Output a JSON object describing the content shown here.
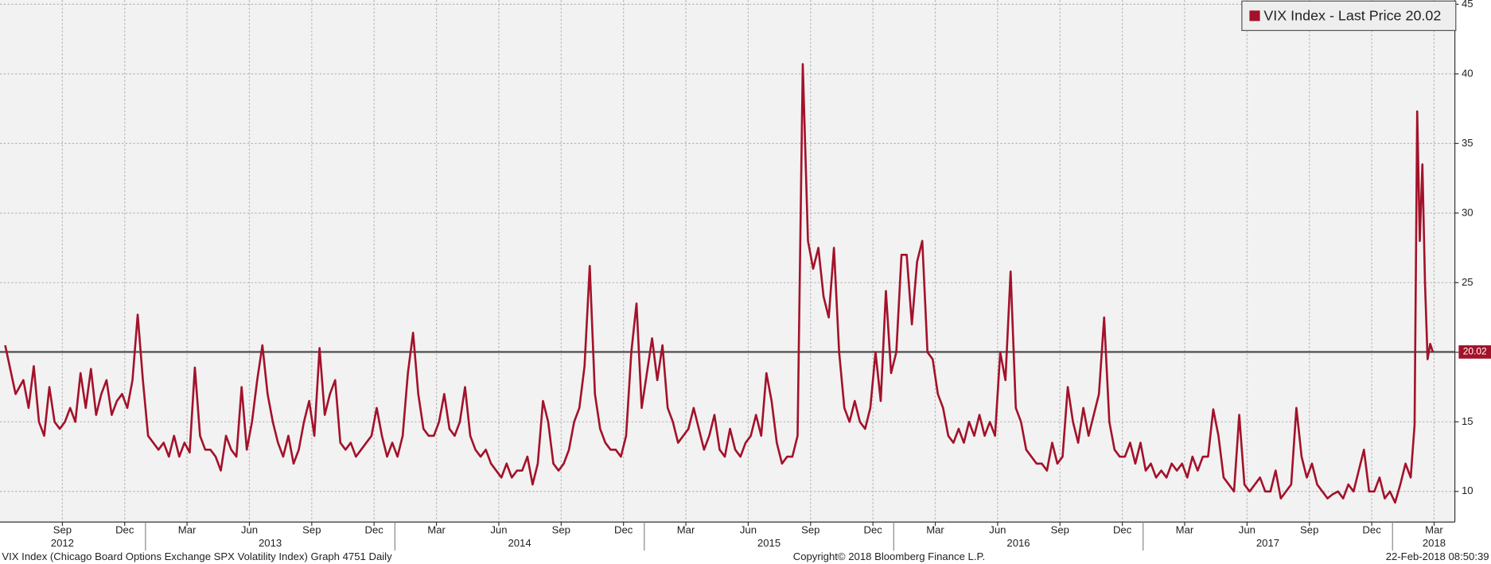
{
  "chart_data": {
    "type": "line",
    "series": [
      {
        "name": "VIX Index - Last Price",
        "color": "#a3122a",
        "values": [
          20.5,
          17,
          18,
          16,
          19,
          15,
          14,
          17.5,
          15,
          14.5,
          15,
          16,
          15,
          18.5,
          16,
          18.8,
          15.5,
          17,
          18,
          15.5,
          16.5,
          17,
          16,
          18,
          22.7,
          18,
          14,
          13.5,
          13,
          13.5,
          12.5,
          14,
          12.5,
          13.5,
          12.8,
          18.9,
          14,
          13,
          13,
          12.5,
          11.5,
          14,
          13,
          12.5,
          17.5,
          13,
          15,
          18,
          20.5,
          17,
          15,
          13.5,
          12.5,
          14,
          12,
          13,
          15,
          16.5,
          14,
          20.3,
          15.5,
          17,
          18,
          13.5,
          13,
          13.5,
          12.5,
          13,
          13.5,
          14,
          16,
          14,
          12.5,
          13.5,
          12.5,
          14,
          18.5,
          21.4,
          17,
          14.5,
          14,
          14,
          15,
          17,
          14.5,
          14,
          15,
          17.5,
          14,
          13,
          12.5,
          13,
          12,
          11.5,
          11,
          12,
          11,
          11.5,
          11.5,
          12.5,
          10.5,
          12,
          16.5,
          15,
          12,
          11.5,
          12,
          13,
          15,
          16,
          19,
          26.2,
          17,
          14.5,
          13.5,
          13,
          13,
          12.5,
          14,
          20,
          23.5,
          16,
          18.5,
          21,
          18,
          20.5,
          16,
          15,
          13.5,
          14,
          14.5,
          16,
          14.5,
          13,
          14,
          15.5,
          13,
          12.5,
          14.5,
          13,
          12.5,
          13.5,
          14,
          15.5,
          14,
          18.5,
          16.5,
          13.5,
          12,
          12.5,
          12.5,
          14,
          40.7,
          28,
          26,
          27.5,
          24,
          22.5,
          27.5,
          20,
          16,
          15,
          16.5,
          15,
          14.5,
          16,
          20,
          16.5,
          24.4,
          18.5,
          20,
          27,
          27,
          22,
          26.5,
          28,
          20,
          19.5,
          17,
          16,
          14,
          13.5,
          14.5,
          13.5,
          15,
          14,
          15.5,
          14,
          15,
          14,
          20,
          18,
          25.8,
          16,
          15,
          13,
          12.5,
          12,
          12,
          11.5,
          13.5,
          12,
          12.5,
          17.5,
          15,
          13.5,
          16,
          14,
          15.5,
          17,
          22.5,
          15,
          13,
          12.5,
          12.5,
          13.5,
          12,
          13.5,
          11.5,
          12,
          11,
          11.5,
          11,
          12,
          11.5,
          12,
          11,
          12.5,
          11.5,
          12.5,
          12.5,
          15.9,
          14,
          11,
          10.5,
          10,
          15.5,
          10.5,
          10,
          10.5,
          11,
          10,
          10,
          11.5,
          9.5,
          10,
          10.5,
          16,
          12.5,
          11,
          12,
          10.5,
          10,
          9.5,
          9.8,
          10,
          9.5,
          10.5,
          10,
          11.5,
          13,
          10,
          10,
          11,
          9.5,
          10,
          9.2,
          10.5,
          12,
          11,
          14.8,
          37.3,
          28,
          33.5,
          25,
          19.5,
          20.6,
          20.02
        ]
      }
    ],
    "x": [
      "2012-06",
      "2012-06",
      "2012-07",
      "2012-07",
      "2012-07",
      "2012-07",
      "2012-08",
      "2012-08",
      "2012-08",
      "2012-08",
      "2012-09",
      "2012-09",
      "2012-09",
      "2012-09",
      "2012-10",
      "2012-10",
      "2012-10",
      "2012-10",
      "2012-11",
      "2012-11",
      "2012-11",
      "2012-11",
      "2012-12",
      "2012-12",
      "2012-12",
      "2012-12",
      "2013-01",
      "2013-01",
      "2013-01",
      "2013-01",
      "2013-02",
      "2013-02",
      "2013-02",
      "2013-02",
      "2013-03",
      "2013-03",
      "2013-03",
      "2013-03",
      "2013-04",
      "2013-04",
      "2013-04",
      "2013-04",
      "2013-05",
      "2013-05",
      "2013-05",
      "2013-05",
      "2013-06",
      "2013-06",
      "2013-06",
      "2013-06",
      "2013-07",
      "2013-07",
      "2013-07",
      "2013-07",
      "2013-08",
      "2013-08",
      "2013-08",
      "2013-08",
      "2013-09",
      "2013-09",
      "2013-09",
      "2013-09",
      "2013-10",
      "2013-10",
      "2013-10",
      "2013-10",
      "2013-11",
      "2013-11",
      "2013-11",
      "2013-11",
      "2013-12",
      "2013-12",
      "2013-12",
      "2013-12",
      "2014-01",
      "2014-01",
      "2014-01",
      "2014-01",
      "2014-02",
      "2014-02",
      "2014-02",
      "2014-02",
      "2014-03",
      "2014-03",
      "2014-03",
      "2014-03",
      "2014-04",
      "2014-04",
      "2014-04",
      "2014-04",
      "2014-05",
      "2014-05",
      "2014-05",
      "2014-05",
      "2014-06",
      "2014-06",
      "2014-06",
      "2014-06",
      "2014-07",
      "2014-07",
      "2014-07",
      "2014-07",
      "2014-08",
      "2014-08",
      "2014-08",
      "2014-08",
      "2014-09",
      "2014-09",
      "2014-09",
      "2014-09",
      "2014-10",
      "2014-10",
      "2014-10",
      "2014-10",
      "2014-11",
      "2014-11",
      "2014-11",
      "2014-11",
      "2014-12",
      "2014-12",
      "2014-12",
      "2014-12",
      "2015-01",
      "2015-01",
      "2015-01",
      "2015-01",
      "2015-02",
      "2015-02",
      "2015-02",
      "2015-02",
      "2015-03",
      "2015-03",
      "2015-03",
      "2015-03",
      "2015-04",
      "2015-04",
      "2015-04",
      "2015-04",
      "2015-05",
      "2015-05",
      "2015-05",
      "2015-05",
      "2015-06",
      "2015-06",
      "2015-06",
      "2015-06",
      "2015-07",
      "2015-07",
      "2015-07",
      "2015-07",
      "2015-08",
      "2015-08",
      "2015-08",
      "2015-08",
      "2015-09",
      "2015-09",
      "2015-09",
      "2015-09",
      "2015-10",
      "2015-10",
      "2015-10",
      "2015-10",
      "2015-11",
      "2015-11",
      "2015-11",
      "2015-11",
      "2015-12",
      "2015-12",
      "2015-12",
      "2015-12",
      "2016-01",
      "2016-01",
      "2016-01",
      "2016-01",
      "2016-02",
      "2016-02",
      "2016-02",
      "2016-02",
      "2016-03",
      "2016-03",
      "2016-03",
      "2016-03",
      "2016-04",
      "2016-04",
      "2016-04",
      "2016-04",
      "2016-05",
      "2016-05",
      "2016-05",
      "2016-05",
      "2016-06",
      "2016-06",
      "2016-06",
      "2016-06",
      "2016-07",
      "2016-07",
      "2016-07",
      "2016-07",
      "2016-08",
      "2016-08",
      "2016-08",
      "2016-08",
      "2016-09",
      "2016-09",
      "2016-09",
      "2016-09",
      "2016-10",
      "2016-10",
      "2016-10",
      "2016-10",
      "2016-11",
      "2016-11",
      "2016-11",
      "2016-11",
      "2016-12",
      "2016-12",
      "2016-12",
      "2016-12",
      "2017-01",
      "2017-01",
      "2017-01",
      "2017-01",
      "2017-02",
      "2017-02",
      "2017-02",
      "2017-02",
      "2017-03",
      "2017-03",
      "2017-03",
      "2017-03",
      "2017-04",
      "2017-04",
      "2017-04",
      "2017-04",
      "2017-05",
      "2017-05",
      "2017-05",
      "2017-05",
      "2017-06",
      "2017-06",
      "2017-06",
      "2017-06",
      "2017-07",
      "2017-07",
      "2017-07",
      "2017-07",
      "2017-08",
      "2017-08",
      "2017-08",
      "2017-08",
      "2017-09",
      "2017-09",
      "2017-09",
      "2017-09",
      "2017-10",
      "2017-10",
      "2017-10",
      "2017-10",
      "2017-11",
      "2017-11",
      "2017-11",
      "2017-11",
      "2017-12",
      "2017-12",
      "2017-12",
      "2017-12",
      "2018-01",
      "2018-01",
      "2018-01",
      "2018-01",
      "2018-02",
      "2018-02",
      "2018-02",
      "2018-02",
      "2018-02",
      "2018-02",
      "2018-02",
      "2018-02"
    ],
    "last_price": 20.02,
    "last_price_color": "#555555",
    "xlim": [
      "2012-06",
      "2018-04"
    ],
    "xticks": [
      {
        "value": "2012-09",
        "label": "Sep"
      },
      {
        "value": "2012-12",
        "label": "Dec"
      },
      {
        "value": "2013-03",
        "label": "Mar"
      },
      {
        "value": "2013-06",
        "label": "Jun"
      },
      {
        "value": "2013-09",
        "label": "Sep"
      },
      {
        "value": "2013-12",
        "label": "Dec"
      },
      {
        "value": "2014-03",
        "label": "Mar"
      },
      {
        "value": "2014-06",
        "label": "Jun"
      },
      {
        "value": "2014-09",
        "label": "Sep"
      },
      {
        "value": "2014-12",
        "label": "Dec"
      },
      {
        "value": "2015-03",
        "label": "Mar"
      },
      {
        "value": "2015-06",
        "label": "Jun"
      },
      {
        "value": "2015-09",
        "label": "Sep"
      },
      {
        "value": "2015-12",
        "label": "Dec"
      },
      {
        "value": "2016-03",
        "label": "Mar"
      },
      {
        "value": "2016-06",
        "label": "Jun"
      },
      {
        "value": "2016-09",
        "label": "Sep"
      },
      {
        "value": "2016-12",
        "label": "Dec"
      },
      {
        "value": "2017-03",
        "label": "Mar"
      },
      {
        "value": "2017-06",
        "label": "Jun"
      },
      {
        "value": "2017-09",
        "label": "Sep"
      },
      {
        "value": "2017-12",
        "label": "Dec"
      },
      {
        "value": "2018-03",
        "label": "Mar"
      }
    ],
    "year_ticks": [
      {
        "value": "2012-09",
        "label": "2012"
      },
      {
        "value": "2013-07",
        "label": "2013"
      },
      {
        "value": "2014-07",
        "label": "2014"
      },
      {
        "value": "2015-07",
        "label": "2015"
      },
      {
        "value": "2016-07",
        "label": "2016"
      },
      {
        "value": "2017-07",
        "label": "2017"
      },
      {
        "value": "2018-03",
        "label": "2018"
      }
    ],
    "ylim": [
      7.8,
      45.3
    ],
    "yticks": [
      10,
      15,
      20,
      25,
      30,
      35,
      40,
      45
    ],
    "grid": true,
    "legend": "top-right",
    "footer_left": "VIX Index (Chicago Board Options Exchange SPX Volatility Index) Graph 4751  Daily",
    "footer_center": "Copyright© 2018 Bloomberg Finance L.P.",
    "footer_right": "22-Feb-2018 08:50:39"
  }
}
